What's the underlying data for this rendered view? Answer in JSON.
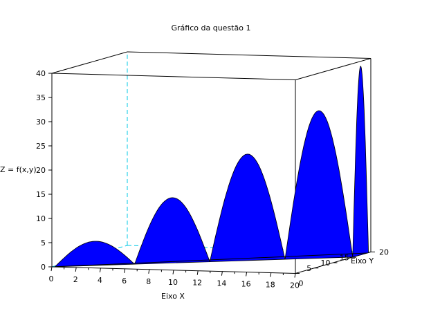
{
  "chart_data": {
    "type": "surface3d",
    "title": "Gráfico da questão 1",
    "xlabel": "Eixo X",
    "ylabel": "Eixo Y",
    "zlabel": "Z = f(x,y)",
    "xlim": [
      0,
      20
    ],
    "ylim": [
      0,
      20
    ],
    "zlim": [
      0,
      40
    ],
    "x_ticks": [
      "0",
      "2",
      "4",
      "6",
      "8",
      "10",
      "12",
      "14",
      "16",
      "18",
      "20"
    ],
    "y_ticks": [
      "0",
      "5",
      "10",
      "15",
      "20"
    ],
    "z_ticks": [
      "0",
      "5",
      "10",
      "15",
      "20",
      "25",
      "30",
      "35",
      "40"
    ],
    "surface_color": "#0000ff",
    "box_hidden_edge_color": "#00c8e6",
    "lobes": [
      {
        "x_start": 0.2,
        "x_end": 5.5,
        "peak": 5.0
      },
      {
        "x_start": 5.5,
        "x_end": 10.5,
        "peak": 13.5
      },
      {
        "x_start": 10.5,
        "x_end": 15.5,
        "peak": 22.0
      },
      {
        "x_start": 15.5,
        "x_end": 20.0,
        "peak": 30.5
      },
      {
        "x_start": 20.0,
        "x_end": 25.5,
        "peak": 39.0
      }
    ]
  }
}
